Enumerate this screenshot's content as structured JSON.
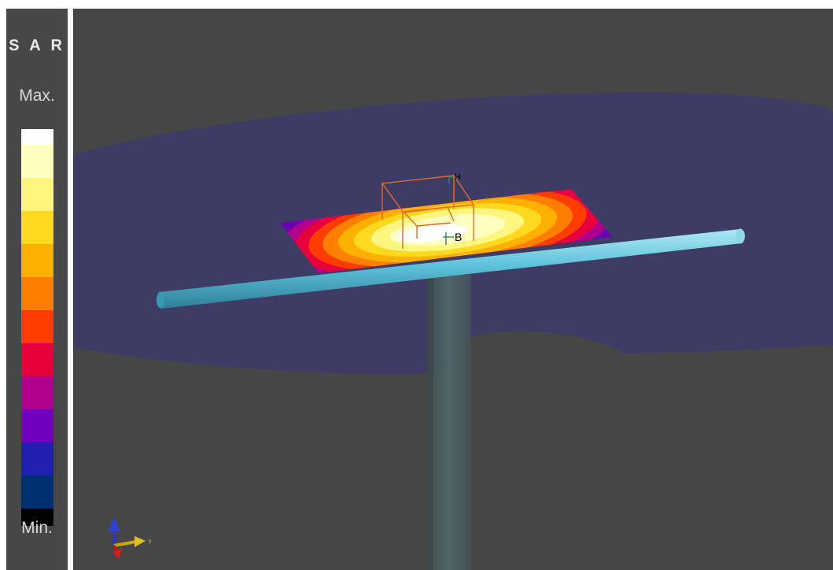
{
  "legend": {
    "title": "S A R",
    "max_label": "Max.",
    "min_label": "Min.",
    "colors": [
      "#ffffff",
      "#ffffc0",
      "#fff680",
      "#ffd820",
      "#ffb000",
      "#ff8000",
      "#ff3c00",
      "#e8003c",
      "#b0008c",
      "#7000c0",
      "#2020b0",
      "#003070",
      "#000000"
    ]
  },
  "scene": {
    "probe_labels": {
      "h": "H",
      "b": "B"
    },
    "axis_label": "y",
    "colors": {
      "background": "#464646",
      "phantom": "#3e3c66",
      "rod": "#5fc3dc",
      "post": "#4f6468",
      "box_wire": "#e06a2a"
    }
  }
}
